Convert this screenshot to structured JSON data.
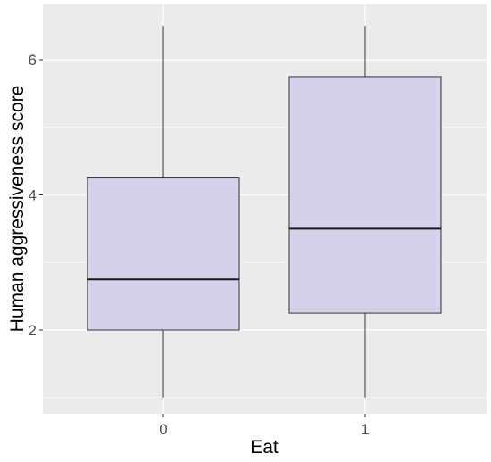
{
  "chart_data": {
    "type": "boxplot",
    "xlabel": "Eat",
    "ylabel": "Human aggressiveness score",
    "categories": [
      "0",
      "1"
    ],
    "ylim": [
      0.7,
      6.5
    ],
    "yticks": [
      2,
      4,
      6
    ],
    "grid": true,
    "boxes": [
      {
        "category": "0",
        "min": 1.0,
        "q1": 2.0,
        "median": 2.75,
        "q3": 4.25,
        "max": 6.5
      },
      {
        "category": "1",
        "min": 1.0,
        "q1": 2.25,
        "median": 3.5,
        "q3": 5.75,
        "max": 6.5
      }
    ],
    "colors": {
      "panel": "#ebebeb",
      "grid_major": "#ffffff",
      "box_fill": "#d6d1ea",
      "box_stroke": "#333333"
    }
  }
}
